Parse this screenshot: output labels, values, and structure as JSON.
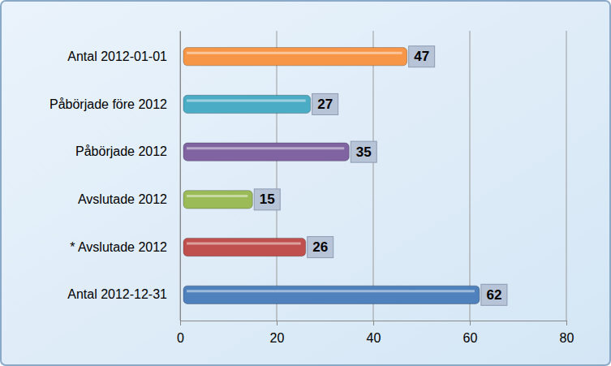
{
  "chart_data": {
    "type": "bar",
    "orientation": "horizontal",
    "categories": [
      "Antal 2012-01-01",
      "Påbörjade före 2012",
      "Påbörjade 2012",
      "Avslutade 2012",
      "* Avslutade 2012",
      "Antal 2012-12-31"
    ],
    "values": [
      47,
      27,
      35,
      15,
      26,
      62
    ],
    "colors": [
      "#f79646",
      "#4bacc6",
      "#8064a2",
      "#9bbb59",
      "#c0504d",
      "#4f81bd"
    ],
    "xlim": [
      0,
      80
    ],
    "xticks": [
      0,
      20,
      40,
      60,
      80
    ],
    "grid": true,
    "data_labels": true
  }
}
